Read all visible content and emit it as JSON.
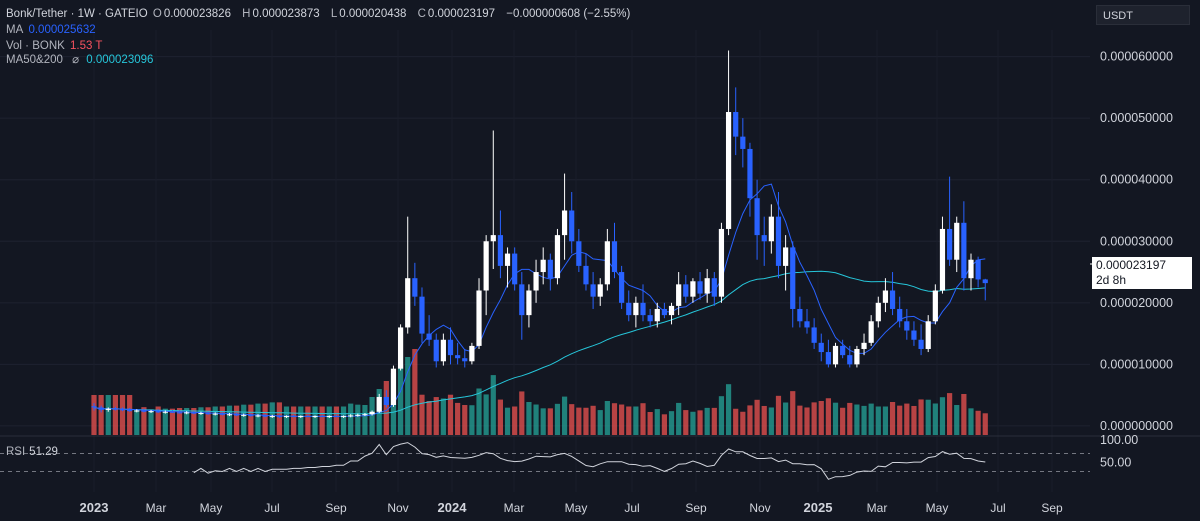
{
  "legend": {
    "symbol": "Bonk/Tether · 1W · GATEIO",
    "open_key": "O",
    "open": "0.000023826",
    "high_key": "H",
    "high": "0.000023873",
    "low_key": "L",
    "low": "0.000020438",
    "close_key": "C",
    "close": "0.000023197",
    "change": "−0.000000608 (−2.55%)",
    "ma_label": "MA",
    "ma_value": "0.000025632",
    "vol_label": "Vol · BONK",
    "vol_value": "1.53 T",
    "ma2_label": "MA50&200",
    "ma2_icon": "⌀",
    "ma2_value": "0.000023096"
  },
  "currency": "USDT",
  "last_price": {
    "price": "0.000023197",
    "countdown": "2d 8h"
  },
  "rsi": {
    "label": "RSI",
    "value": "51.29"
  },
  "colors": {
    "up": "#ffffff",
    "down": "#2962ff",
    "vol_up": "#26a69a",
    "vol_down": "#ef5350",
    "ma": "#2962ff",
    "ma_long": "#26c6da",
    "rsi": "#d1d4dc"
  },
  "chart_data": {
    "type": "candlestick",
    "interval": "1W",
    "price_axis": {
      "ticks": [
        "0.000000000",
        "0.000010000",
        "0.000020000",
        "0.000030000",
        "0.000040000",
        "0.000050000",
        "0.000060000"
      ],
      "range": [
        -7e-06,
        6.4e-05
      ]
    },
    "rsi_axis": {
      "ticks": [
        "100.00",
        "50.00"
      ],
      "levels": [
        70,
        30
      ]
    },
    "time_axis": [
      "2023",
      "Mar",
      "May",
      "Jul",
      "Sep",
      "Nov",
      "2024",
      "Mar",
      "May",
      "Jul",
      "Sep",
      "Nov",
      "2025",
      "Mar",
      "May",
      "Jul",
      "Sep"
    ],
    "year_labels": [
      "2023",
      "2024",
      "2025"
    ],
    "candles": [
      {
        "o": 3.2e-06,
        "h": 3.7e-06,
        "l": 2.5e-06,
        "c": 3e-06
      },
      {
        "o": 3e-06,
        "h": 3.3e-06,
        "l": 2.2e-06,
        "c": 2.6e-06
      },
      {
        "o": 2.6e-06,
        "h": 3e-06,
        "l": 2.3e-06,
        "c": 2.8e-06
      },
      {
        "o": 2.8e-06,
        "h": 3.1e-06,
        "l": 2.5e-06,
        "c": 2.7e-06
      },
      {
        "o": 2.7e-06,
        "h": 3e-06,
        "l": 2.4e-06,
        "c": 2.6e-06
      },
      {
        "o": 2.6e-06,
        "h": 2.9e-06,
        "l": 2.3e-06,
        "c": 2.4e-06
      },
      {
        "o": 2.4e-06,
        "h": 2.7e-06,
        "l": 2.2e-06,
        "c": 2.5e-06
      },
      {
        "o": 2.5e-06,
        "h": 2.8e-06,
        "l": 2.2e-06,
        "c": 2.3e-06
      },
      {
        "o": 2.3e-06,
        "h": 2.6e-06,
        "l": 2.1e-06,
        "c": 2.4e-06
      },
      {
        "o": 2.4e-06,
        "h": 2.7e-06,
        "l": 2.1e-06,
        "c": 2.2e-06
      },
      {
        "o": 2.2e-06,
        "h": 2.5e-06,
        "l": 2e-06,
        "c": 2.3e-06
      },
      {
        "o": 2.3e-06,
        "h": 2.6e-06,
        "l": 2.1e-06,
        "c": 2.2e-06
      },
      {
        "o": 2.2e-06,
        "h": 2.5e-06,
        "l": 2e-06,
        "c": 2.1e-06
      },
      {
        "o": 2.1e-06,
        "h": 2.4e-06,
        "l": 1.9e-06,
        "c": 2.2e-06
      },
      {
        "o": 2.2e-06,
        "h": 2.4e-06,
        "l": 1.9e-06,
        "c": 2e-06
      },
      {
        "o": 2e-06,
        "h": 2.3e-06,
        "l": 1.8e-06,
        "c": 2.1e-06
      },
      {
        "o": 2.1e-06,
        "h": 2.3e-06,
        "l": 1.8e-06,
        "c": 1.9e-06
      },
      {
        "o": 1.9e-06,
        "h": 2.2e-06,
        "l": 1.7e-06,
        "c": 2e-06
      },
      {
        "o": 2e-06,
        "h": 2.2e-06,
        "l": 1.7e-06,
        "c": 1.8e-06
      },
      {
        "o": 1.8e-06,
        "h": 2.1e-06,
        "l": 1.6e-06,
        "c": 1.9e-06
      },
      {
        "o": 1.9e-06,
        "h": 2.1e-06,
        "l": 1.6e-06,
        "c": 1.7e-06
      },
      {
        "o": 1.7e-06,
        "h": 2e-06,
        "l": 1.5e-06,
        "c": 1.8e-06
      },
      {
        "o": 1.8e-06,
        "h": 2e-06,
        "l": 1.5e-06,
        "c": 1.6e-06
      },
      {
        "o": 1.6e-06,
        "h": 1.9e-06,
        "l": 1.4e-06,
        "c": 1.7e-06
      },
      {
        "o": 1.7e-06,
        "h": 1.9e-06,
        "l": 1.4e-06,
        "c": 1.5e-06
      },
      {
        "o": 1.5e-06,
        "h": 1.8e-06,
        "l": 1.3e-06,
        "c": 1.6e-06
      },
      {
        "o": 1.6e-06,
        "h": 1.8e-06,
        "l": 1.3e-06,
        "c": 1.5e-06
      },
      {
        "o": 1.5e-06,
        "h": 1.7e-06,
        "l": 1.3e-06,
        "c": 1.6e-06
      },
      {
        "o": 1.6e-06,
        "h": 1.8e-06,
        "l": 1.4e-06,
        "c": 1.5e-06
      },
      {
        "o": 1.5e-06,
        "h": 1.7e-06,
        "l": 1.3e-06,
        "c": 1.6e-06
      },
      {
        "o": 1.6e-06,
        "h": 1.8e-06,
        "l": 1.4e-06,
        "c": 1.5e-06
      },
      {
        "o": 1.5e-06,
        "h": 1.7e-06,
        "l": 1.3e-06,
        "c": 1.6e-06
      },
      {
        "o": 1.6e-06,
        "h": 1.8e-06,
        "l": 1.4e-06,
        "c": 1.5e-06
      },
      {
        "o": 1.5e-06,
        "h": 1.7e-06,
        "l": 1.3e-06,
        "c": 1.6e-06
      },
      {
        "o": 1.6e-06,
        "h": 1.8e-06,
        "l": 1.4e-06,
        "c": 1.5e-06
      },
      {
        "o": 1.5e-06,
        "h": 1.7e-06,
        "l": 1.3e-06,
        "c": 1.6e-06
      },
      {
        "o": 1.6e-06,
        "h": 1.9e-06,
        "l": 1.4e-06,
        "c": 1.7e-06
      },
      {
        "o": 1.7e-06,
        "h": 2e-06,
        "l": 1.5e-06,
        "c": 1.8e-06
      },
      {
        "o": 1.8e-06,
        "h": 2.1e-06,
        "l": 1.6e-06,
        "c": 1.9e-06
      },
      {
        "o": 1.9e-06,
        "h": 2.5e-06,
        "l": 1.7e-06,
        "c": 2.3e-06
      },
      {
        "o": 2.3e-06,
        "h": 5.2e-06,
        "l": 2.1e-06,
        "c": 4.7e-06
      },
      {
        "o": 4.7e-06,
        "h": 5.8e-06,
        "l": 3e-06,
        "c": 3.4e-06
      },
      {
        "o": 3.4e-06,
        "h": 9.8e-06,
        "l": 3.1e-06,
        "c": 9.3e-06
      },
      {
        "o": 9.3e-06,
        "h": 1.65e-05,
        "l": 9e-06,
        "c": 1.6e-05
      },
      {
        "o": 1.6e-05,
        "h": 3.4e-05,
        "l": 1.5e-05,
        "c": 2.4e-05
      },
      {
        "o": 2.4e-05,
        "h": 2.65e-05,
        "l": 1.95e-05,
        "c": 2.1e-05
      },
      {
        "o": 2.1e-05,
        "h": 2.25e-05,
        "l": 1.35e-05,
        "c": 1.5e-05
      },
      {
        "o": 1.5e-05,
        "h": 1.8e-05,
        "l": 1.3e-05,
        "c": 1.4e-05
      },
      {
        "o": 1.4e-05,
        "h": 1.5e-05,
        "l": 9.5e-06,
        "c": 1.05e-05
      },
      {
        "o": 1.05e-05,
        "h": 1.5e-05,
        "l": 9.8e-06,
        "c": 1.4e-05
      },
      {
        "o": 1.4e-05,
        "h": 1.6e-05,
        "l": 1e-05,
        "c": 1.15e-05
      },
      {
        "o": 1.15e-05,
        "h": 1.35e-05,
        "l": 1e-05,
        "c": 1.1e-05
      },
      {
        "o": 1.1e-05,
        "h": 1.25e-05,
        "l": 9.5e-06,
        "c": 1.05e-05
      },
      {
        "o": 1.05e-05,
        "h": 1.35e-05,
        "l": 1e-05,
        "c": 1.3e-05
      },
      {
        "o": 1.3e-05,
        "h": 2.4e-05,
        "l": 1.25e-05,
        "c": 2.2e-05
      },
      {
        "o": 2.2e-05,
        "h": 3.1e-05,
        "l": 1.8e-05,
        "c": 3e-05
      },
      {
        "o": 3e-05,
        "h": 4.8e-05,
        "l": 2.55e-05,
        "c": 3.1e-05
      },
      {
        "o": 3.1e-05,
        "h": 3.5e-05,
        "l": 2.4e-05,
        "c": 2.6e-05
      },
      {
        "o": 2.6e-05,
        "h": 2.9e-05,
        "l": 2.25e-05,
        "c": 2.8e-05
      },
      {
        "o": 2.8e-05,
        "h": 2.9e-05,
        "l": 2.2e-05,
        "c": 2.3e-05
      },
      {
        "o": 2.3e-05,
        "h": 2.5e-05,
        "l": 1.4e-05,
        "c": 1.8e-05
      },
      {
        "o": 1.8e-05,
        "h": 2.3e-05,
        "l": 1.6e-05,
        "c": 2.2e-05
      },
      {
        "o": 2.2e-05,
        "h": 2.7e-05,
        "l": 2e-05,
        "c": 2.5e-05
      },
      {
        "o": 2.5e-05,
        "h": 2.9e-05,
        "l": 2.3e-05,
        "c": 2.7e-05
      },
      {
        "o": 2.7e-05,
        "h": 2.8e-05,
        "l": 2.2e-05,
        "c": 2.4e-05
      },
      {
        "o": 2.4e-05,
        "h": 3.2e-05,
        "l": 2.3e-05,
        "c": 3.1e-05
      },
      {
        "o": 3.1e-05,
        "h": 4.1e-05,
        "l": 2.7e-05,
        "c": 3.5e-05
      },
      {
        "o": 3.5e-05,
        "h": 3.8e-05,
        "l": 2.8e-05,
        "c": 3e-05
      },
      {
        "o": 3e-05,
        "h": 3.2e-05,
        "l": 2.5e-05,
        "c": 2.6e-05
      },
      {
        "o": 2.6e-05,
        "h": 2.8e-05,
        "l": 2.2e-05,
        "c": 2.3e-05
      },
      {
        "o": 2.3e-05,
        "h": 2.5e-05,
        "l": 1.9e-05,
        "c": 2.1e-05
      },
      {
        "o": 2.1e-05,
        "h": 2.4e-05,
        "l": 1.95e-05,
        "c": 2.3e-05
      },
      {
        "o": 2.3e-05,
        "h": 3.2e-05,
        "l": 2.2e-05,
        "c": 3e-05
      },
      {
        "o": 3e-05,
        "h": 3.3e-05,
        "l": 2.4e-05,
        "c": 2.5e-05
      },
      {
        "o": 2.5e-05,
        "h": 2.6e-05,
        "l": 1.9e-05,
        "c": 2e-05
      },
      {
        "o": 2e-05,
        "h": 2.2e-05,
        "l": 1.7e-05,
        "c": 1.8e-05
      },
      {
        "o": 1.8e-05,
        "h": 2.1e-05,
        "l": 1.6e-05,
        "c": 2e-05
      },
      {
        "o": 2e-05,
        "h": 2.3e-05,
        "l": 1.7e-05,
        "c": 1.8e-05
      },
      {
        "o": 1.8e-05,
        "h": 1.9e-05,
        "l": 1.6e-05,
        "c": 1.7e-05
      },
      {
        "o": 1.7e-05,
        "h": 2e-05,
        "l": 1.6e-05,
        "c": 1.9e-05
      },
      {
        "o": 1.9e-05,
        "h": 2e-05,
        "l": 1.75e-05,
        "c": 1.8e-05
      },
      {
        "o": 1.8e-05,
        "h": 2e-05,
        "l": 1.65e-05,
        "c": 1.95e-05
      },
      {
        "o": 1.95e-05,
        "h": 2.5e-05,
        "l": 1.8e-05,
        "c": 2.3e-05
      },
      {
        "o": 2.3e-05,
        "h": 2.45e-05,
        "l": 2e-05,
        "c": 2.1e-05
      },
      {
        "o": 2.1e-05,
        "h": 2.4e-05,
        "l": 2e-05,
        "c": 2.35e-05
      },
      {
        "o": 2.35e-05,
        "h": 2.5e-05,
        "l": 2.05e-05,
        "c": 2.15e-05
      },
      {
        "o": 2.15e-05,
        "h": 2.55e-05,
        "l": 2e-05,
        "c": 2.4e-05
      },
      {
        "o": 2.4e-05,
        "h": 2.5e-05,
        "l": 1.95e-05,
        "c": 2.1e-05
      },
      {
        "o": 2.1e-05,
        "h": 3.3e-05,
        "l": 2e-05,
        "c": 3.2e-05
      },
      {
        "o": 3.2e-05,
        "h": 6.1e-05,
        "l": 3.1e-05,
        "c": 5.1e-05
      },
      {
        "o": 5.1e-05,
        "h": 5.5e-05,
        "l": 4.4e-05,
        "c": 4.7e-05
      },
      {
        "o": 4.7e-05,
        "h": 5e-05,
        "l": 4.2e-05,
        "c": 4.5e-05
      },
      {
        "o": 4.5e-05,
        "h": 4.6e-05,
        "l": 3.4e-05,
        "c": 3.7e-05
      },
      {
        "o": 3.7e-05,
        "h": 4e-05,
        "l": 2.7e-05,
        "c": 3.1e-05
      },
      {
        "o": 3.1e-05,
        "h": 3.4e-05,
        "l": 2.6e-05,
        "c": 3e-05
      },
      {
        "o": 3e-05,
        "h": 3.6e-05,
        "l": 2.8e-05,
        "c": 3.4e-05
      },
      {
        "o": 3.4e-05,
        "h": 3.8e-05,
        "l": 2.4e-05,
        "c": 2.6e-05
      },
      {
        "o": 2.6e-05,
        "h": 3.1e-05,
        "l": 2.2e-05,
        "c": 2.9e-05
      },
      {
        "o": 2.9e-05,
        "h": 3e-05,
        "l": 1.6e-05,
        "c": 1.9e-05
      },
      {
        "o": 1.9e-05,
        "h": 2.1e-05,
        "l": 1.6e-05,
        "c": 1.7e-05
      },
      {
        "o": 1.7e-05,
        "h": 1.9e-05,
        "l": 1.5e-05,
        "c": 1.6e-05
      },
      {
        "o": 1.6e-05,
        "h": 1.75e-05,
        "l": 1.25e-05,
        "c": 1.35e-05
      },
      {
        "o": 1.35e-05,
        "h": 1.5e-05,
        "l": 1.05e-05,
        "c": 1.2e-05
      },
      {
        "o": 1.2e-05,
        "h": 1.4e-05,
        "l": 9.5e-06,
        "c": 1e-05
      },
      {
        "o": 1e-05,
        "h": 1.35e-05,
        "l": 9.5e-06,
        "c": 1.3e-05
      },
      {
        "o": 1.3e-05,
        "h": 1.4e-05,
        "l": 1.1e-05,
        "c": 1.15e-05
      },
      {
        "o": 1.15e-05,
        "h": 1.3e-05,
        "l": 9.5e-06,
        "c": 1e-05
      },
      {
        "o": 1e-05,
        "h": 1.3e-05,
        "l": 9.5e-06,
        "c": 1.25e-05
      },
      {
        "o": 1.25e-05,
        "h": 1.5e-05,
        "l": 1.15e-05,
        "c": 1.35e-05
      },
      {
        "o": 1.35e-05,
        "h": 1.8e-05,
        "l": 1.3e-05,
        "c": 1.7e-05
      },
      {
        "o": 1.7e-05,
        "h": 2.1e-05,
        "l": 1.6e-05,
        "c": 2e-05
      },
      {
        "o": 2e-05,
        "h": 2.4e-05,
        "l": 1.85e-05,
        "c": 2.2e-05
      },
      {
        "o": 2.2e-05,
        "h": 2.5e-05,
        "l": 1.8e-05,
        "c": 1.9e-05
      },
      {
        "o": 1.9e-05,
        "h": 2.1e-05,
        "l": 1.6e-05,
        "c": 1.7e-05
      },
      {
        "o": 1.7e-05,
        "h": 1.9e-05,
        "l": 1.4e-05,
        "c": 1.55e-05
      },
      {
        "o": 1.55e-05,
        "h": 1.7e-05,
        "l": 1.3e-05,
        "c": 1.4e-05
      },
      {
        "o": 1.4e-05,
        "h": 1.65e-05,
        "l": 1.15e-05,
        "c": 1.25e-05
      },
      {
        "o": 1.25e-05,
        "h": 1.8e-05,
        "l": 1.2e-05,
        "c": 1.7e-05
      },
      {
        "o": 1.7e-05,
        "h": 2.3e-05,
        "l": 1.65e-05,
        "c": 2.2e-05
      },
      {
        "o": 2.2e-05,
        "h": 3.4e-05,
        "l": 2.15e-05,
        "c": 3.2e-05
      },
      {
        "o": 3.2e-05,
        "h": 4.05e-05,
        "l": 2.6e-05,
        "c": 2.7e-05
      },
      {
        "o": 2.7e-05,
        "h": 3.4e-05,
        "l": 2.5e-05,
        "c": 3.3e-05
      },
      {
        "o": 3.3e-05,
        "h": 3.65e-05,
        "l": 2.2e-05,
        "c": 2.4e-05
      },
      {
        "o": 2.4e-05,
        "h": 2.8e-05,
        "l": 2.2e-05,
        "c": 2.7e-05
      },
      {
        "o": 2.7e-05,
        "h": 2.75e-05,
        "l": 2.25e-05,
        "c": 2.38e-05
      },
      {
        "o": 2.38e-05,
        "h": 2.39e-05,
        "l": 2.04e-05,
        "c": 2.32e-05
      }
    ]
  }
}
